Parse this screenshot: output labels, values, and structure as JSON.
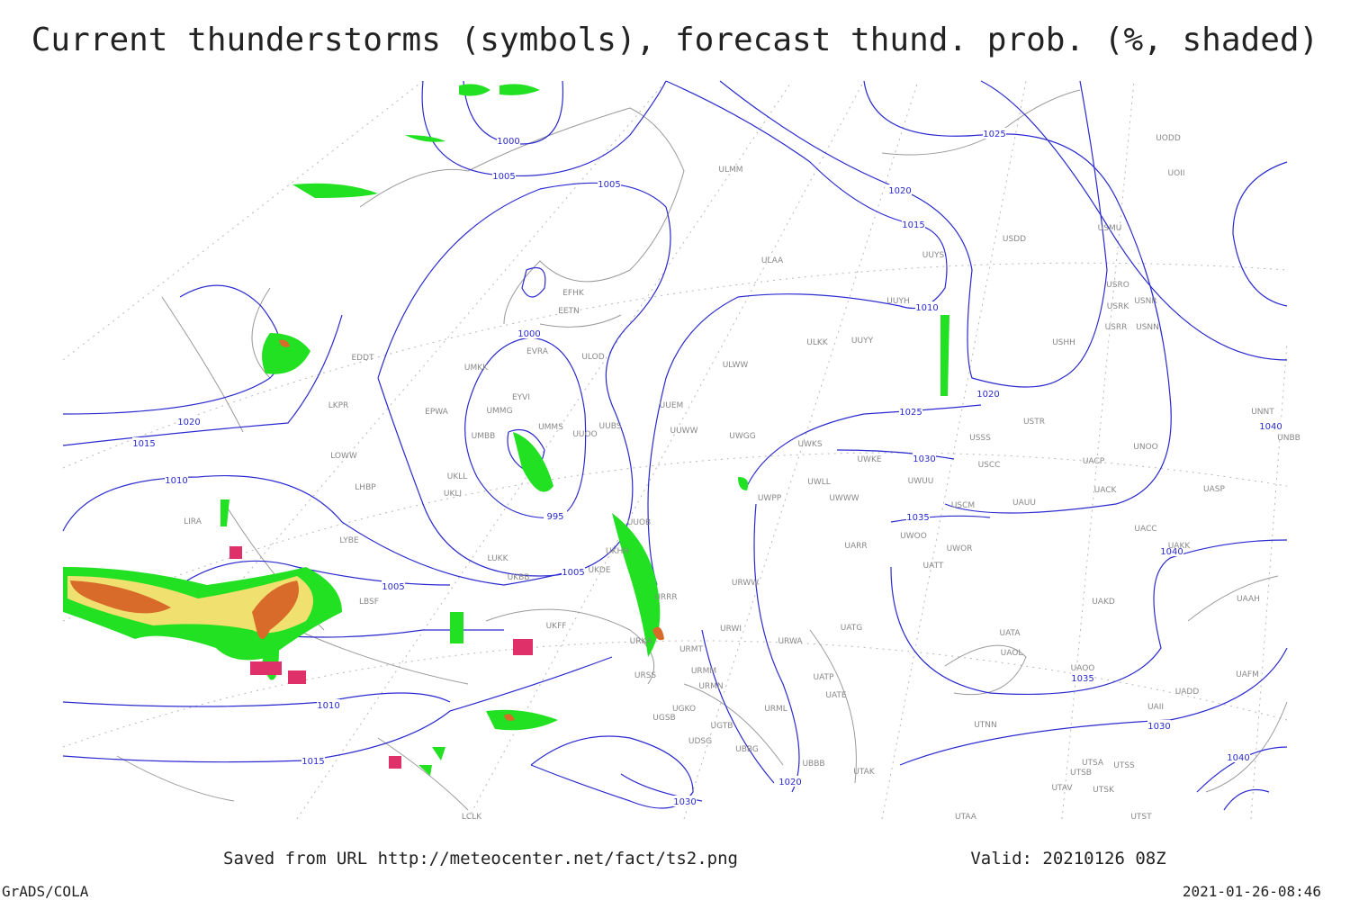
{
  "title": "Current thunderstorms (symbols), forecast thund. prob. (%, shaded)",
  "footer": {
    "saved": "Saved from URL http://meteocenter.net/fact/ts2.png",
    "valid": "Valid: 20210126 08Z",
    "software": "GrADS/COLA",
    "timestamp": "2021-01-26-08:46"
  },
  "isobar_labels": [
    "1000",
    "1005",
    "1005",
    "1025",
    "1020",
    "1015",
    "1010",
    "1020",
    "1000",
    "995",
    "1005",
    "1005",
    "1020",
    "1015",
    "1010",
    "1010",
    "1015",
    "1025",
    "1030",
    "1035",
    "1040",
    "1035",
    "1030",
    "1040",
    "1040",
    "1030",
    "1020"
  ],
  "stations": [
    "ULMM",
    "ULAA",
    "UUYS",
    "UUYH",
    "ULKK",
    "UUYY",
    "ULWW",
    "UUEM",
    "UUWW",
    "UWGG",
    "UWKS",
    "UWKE",
    "USSS",
    "USTR",
    "USCC",
    "UACP",
    "UNOO",
    "UNNT",
    "UNBB",
    "EFHK",
    "EETN",
    "EVRA",
    "ULOD",
    "UMKK",
    "EPWA",
    "LKPR",
    "EDDT",
    "LOWW",
    "LHBP",
    "LIRA",
    "LYBE",
    "UKBB",
    "LUKK",
    "UMMG",
    "EYVI",
    "UMMS",
    "UUOO",
    "UUBS",
    "UMBB",
    "UKLL",
    "UKLI",
    "UUOB",
    "UKDE",
    "UKHH",
    "URRR",
    "UKFF",
    "URKA",
    "URMT",
    "URMM",
    "URSS",
    "URMN",
    "UGSB",
    "UGKO",
    "UGTB",
    "UDSG",
    "UBBG",
    "UBBB",
    "UTAK",
    "URML",
    "UATG",
    "UATT",
    "UARR",
    "UWOO",
    "UWOR",
    "UATA",
    "UAOL",
    "UAOO",
    "UAII",
    "UTNN",
    "UTSA",
    "UTSB",
    "UTSS",
    "UTAV",
    "UTSK",
    "UTAA",
    "UTST",
    "UAFM",
    "UADD",
    "UAAH",
    "UAKD",
    "UACC",
    "UAKK",
    "UASP",
    "UACK",
    "USCM",
    "UAUU",
    "UWPP",
    "UWLL",
    "UWWW",
    "UWUU",
    "URWW",
    "URWA",
    "URWI",
    "UATE",
    "UATP",
    "UODD",
    "UOII",
    "USDD",
    "USMU",
    "USRO",
    "USRK",
    "USNR",
    "USNN",
    "USRR",
    "USHH",
    "LBSF",
    "LCLK"
  ]
}
